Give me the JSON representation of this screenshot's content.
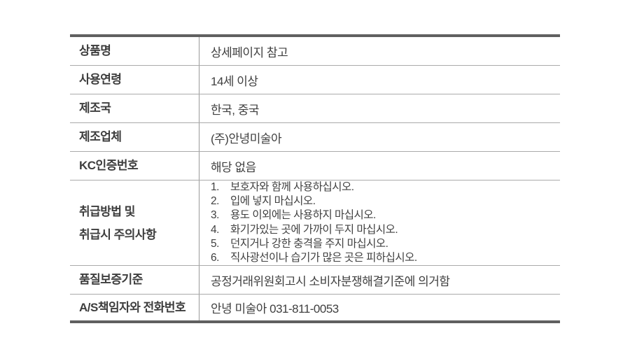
{
  "table": {
    "rows": [
      {
        "label": "상품명",
        "value": "상세페이지 참고"
      },
      {
        "label": "사용연령",
        "value": "14세 이상"
      },
      {
        "label": "제조국",
        "value": "한국, 중국"
      },
      {
        "label": "제조업체",
        "value": "(주)안녕미술아"
      },
      {
        "label": "KC인증번호",
        "value": "해당 없음"
      },
      {
        "label_line1": "취급방법 및",
        "label_line2": "취급시 주의사항",
        "list": [
          {
            "num": "1.",
            "text": "보호자와 함께 사용하십시오."
          },
          {
            "num": "2.",
            "text": "입에 넣지 마십시오."
          },
          {
            "num": "3.",
            "text": "용도 이외에는 사용하지 마십시오."
          },
          {
            "num": "4.",
            "text": "화기가있는 곳에 가까이 두지 마십시오."
          },
          {
            "num": "5.",
            "text": "던지거나 강한 충격을 주지 마십시오."
          },
          {
            "num": "6.",
            "text": "직사광선이나 습기가 많은 곳은 피하십시오."
          }
        ]
      },
      {
        "label": "품질보증기준",
        "value": "공정거래위원회고시 소비자분쟁해결기준에 의거함"
      },
      {
        "label": "A/S책임자와 전화번호",
        "value": "안녕 미술아 031-811-0053"
      }
    ]
  },
  "colors": {
    "border_heavy": "#606060",
    "border_light": "#aaaaaa",
    "divider": "#9a9a9a",
    "label_text": "#3d3d3d",
    "value_text": "#404040",
    "background": "#ffffff"
  }
}
